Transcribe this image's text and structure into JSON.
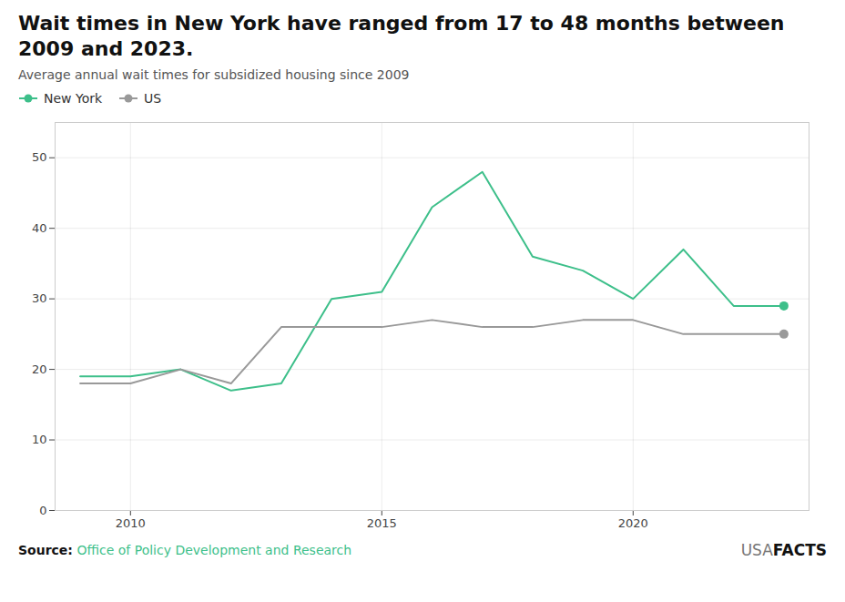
{
  "chart_data": {
    "type": "line",
    "title": "Wait times in New York have ranged from 17 to 48 months between 2009 and 2023.",
    "subtitle": "Average annual wait times for subsidized housing since 2009",
    "x": [
      2009,
      2010,
      2011,
      2012,
      2013,
      2014,
      2015,
      2016,
      2017,
      2018,
      2019,
      2020,
      2021,
      2022,
      2023
    ],
    "series": [
      {
        "name": "New York",
        "color": "#3dbf8a",
        "values": [
          19,
          19,
          20,
          17,
          18,
          30,
          31,
          43,
          48,
          36,
          34,
          30,
          37,
          29,
          29
        ]
      },
      {
        "name": "US",
        "color": "#999999",
        "values": [
          18,
          18,
          20,
          18,
          26,
          26,
          26,
          27,
          26,
          26,
          27,
          27,
          25,
          25,
          25
        ]
      }
    ],
    "xlim": [
      2008.5,
      2023.5
    ],
    "xticks": [
      2010,
      2015,
      2020
    ],
    "ylim": [
      0,
      55
    ],
    "yticks": [
      0,
      10,
      20,
      30,
      40,
      50
    ],
    "grid": true,
    "legend": "top-left",
    "marker": "circle",
    "source_label": "Source:",
    "source_text": "Office of Policy Development and Research",
    "brand": [
      "USA",
      "FACTS"
    ]
  }
}
